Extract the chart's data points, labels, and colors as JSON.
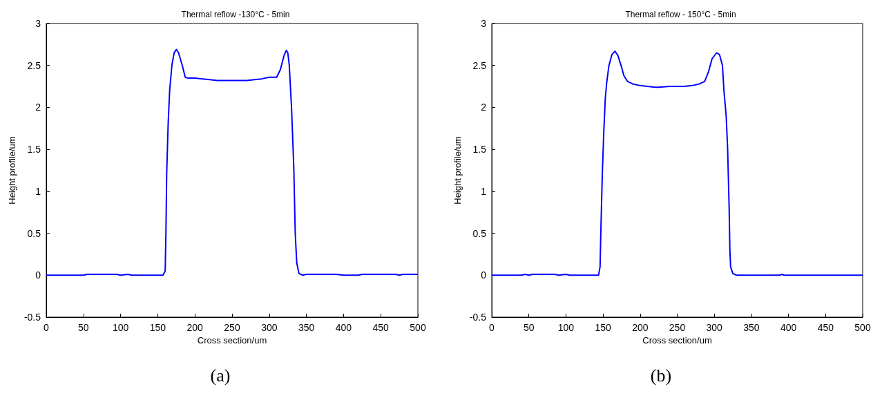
{
  "chart_data": [
    {
      "type": "line",
      "title": "Thermal reflow -130°C - 5min",
      "xlabel": "Cross section/um",
      "ylabel": "Height profile/um",
      "annotations": [
        "(a)"
      ],
      "xlim": [
        0,
        500
      ],
      "ylim": [
        -0.5,
        3
      ],
      "xticks": [
        0,
        50,
        100,
        150,
        200,
        250,
        300,
        350,
        400,
        450,
        500
      ],
      "yticks": [
        -0.5,
        0,
        0.5,
        1,
        1.5,
        2,
        2.5,
        3
      ],
      "marker": "none",
      "line_style": "solid",
      "series": [
        {
          "color": "#0000ff",
          "x": [
            0,
            50,
            55,
            95,
            100,
            110,
            115,
            157,
            160,
            161,
            162,
            164,
            166,
            169,
            172,
            175,
            178,
            183,
            187,
            190,
            200,
            210,
            220,
            230,
            250,
            270,
            280,
            290,
            300,
            310,
            315,
            320,
            323,
            325,
            327,
            330,
            333,
            335,
            337,
            340,
            345,
            350,
            390,
            400,
            420,
            425,
            440,
            470,
            475,
            480,
            500
          ],
          "values": [
            0,
            0,
            0.01,
            0.01,
            0,
            0.01,
            0,
            0,
            0.05,
            0.5,
            1.2,
            1.8,
            2.2,
            2.5,
            2.65,
            2.69,
            2.65,
            2.5,
            2.36,
            2.35,
            2.35,
            2.34,
            2.33,
            2.32,
            2.32,
            2.32,
            2.33,
            2.34,
            2.36,
            2.36,
            2.45,
            2.62,
            2.68,
            2.65,
            2.5,
            2,
            1.3,
            0.5,
            0.15,
            0.02,
            0,
            0.01,
            0.01,
            0,
            0,
            0.01,
            0.01,
            0.01,
            0,
            0.01,
            0.01
          ]
        }
      ]
    },
    {
      "type": "line",
      "title": "Thermal reflow - 150°C - 5min",
      "xlabel": "Cross section/um",
      "ylabel": "Height profile/um",
      "annotations": [
        "(b)"
      ],
      "xlim": [
        0,
        500
      ],
      "ylim": [
        -0.5,
        3
      ],
      "xticks": [
        0,
        50,
        100,
        150,
        200,
        250,
        300,
        350,
        400,
        450,
        500
      ],
      "yticks": [
        -0.5,
        0,
        0.5,
        1,
        1.5,
        2,
        2.5,
        3
      ],
      "marker": "none",
      "line_style": "solid",
      "series": [
        {
          "color": "#0000ff",
          "x": [
            0,
            40,
            45,
            50,
            55,
            85,
            90,
            100,
            105,
            144,
            146,
            147,
            149,
            151,
            153,
            155,
            158,
            162,
            166,
            170,
            175,
            178,
            183,
            190,
            200,
            210,
            220,
            225,
            240,
            260,
            270,
            280,
            287,
            292,
            297,
            303,
            307,
            311,
            313,
            316,
            318,
            320,
            321,
            322,
            325,
            330,
            388,
            391,
            394,
            500
          ],
          "values": [
            0,
            0,
            0.01,
            0,
            0.01,
            0.01,
            0,
            0.01,
            0,
            0,
            0.1,
            0.5,
            1.2,
            1.7,
            2.1,
            2.3,
            2.5,
            2.63,
            2.67,
            2.62,
            2.48,
            2.38,
            2.31,
            2.28,
            2.26,
            2.25,
            2.24,
            2.24,
            2.25,
            2.25,
            2.26,
            2.28,
            2.31,
            2.42,
            2.58,
            2.65,
            2.63,
            2.5,
            2.2,
            1.9,
            1.5,
            0.8,
            0.3,
            0.1,
            0.02,
            0,
            0,
            0.01,
            0,
            0
          ]
        }
      ]
    }
  ]
}
